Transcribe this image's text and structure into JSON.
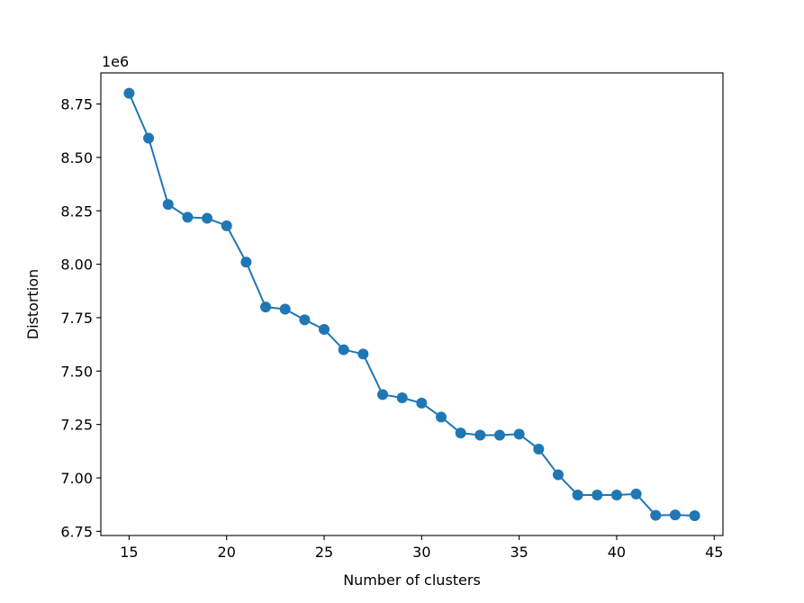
{
  "chart_data": {
    "type": "line",
    "title": "",
    "xlabel": "Number of clusters",
    "ylabel": "Distortion",
    "y_offset_label": "1e6",
    "xlim": [
      13.55,
      45.45
    ],
    "ylim": [
      6.7305,
      8.8955
    ],
    "grid": false,
    "x_ticks": [
      15,
      20,
      25,
      30,
      35,
      40,
      45
    ],
    "x_tick_labels": [
      "15",
      "20",
      "25",
      "30",
      "35",
      "40",
      "45"
    ],
    "y_ticks": [
      6.75,
      7.0,
      7.25,
      7.5,
      7.75,
      8.0,
      8.25,
      8.5,
      8.75
    ],
    "y_tick_labels": [
      "6.75",
      "7.00",
      "7.25",
      "7.50",
      "7.75",
      "8.00",
      "8.25",
      "8.50",
      "8.75"
    ],
    "series": [
      {
        "color": "#1f77b4",
        "marker": "circle",
        "x": [
          15,
          16,
          17,
          18,
          19,
          20,
          21,
          22,
          23,
          24,
          25,
          26,
          27,
          28,
          29,
          30,
          31,
          32,
          33,
          34,
          35,
          36,
          37,
          38,
          39,
          40,
          41,
          42,
          43,
          44
        ],
        "y": [
          8.8,
          8.59,
          8.28,
          8.22,
          8.215,
          8.18,
          8.01,
          7.8,
          7.79,
          7.74,
          7.695,
          7.6,
          7.58,
          7.39,
          7.375,
          7.35,
          7.285,
          7.21,
          7.2,
          7.2,
          7.205,
          7.135,
          7.015,
          6.92,
          6.92,
          6.92,
          6.925,
          6.825,
          6.827,
          6.823
        ]
      }
    ]
  }
}
